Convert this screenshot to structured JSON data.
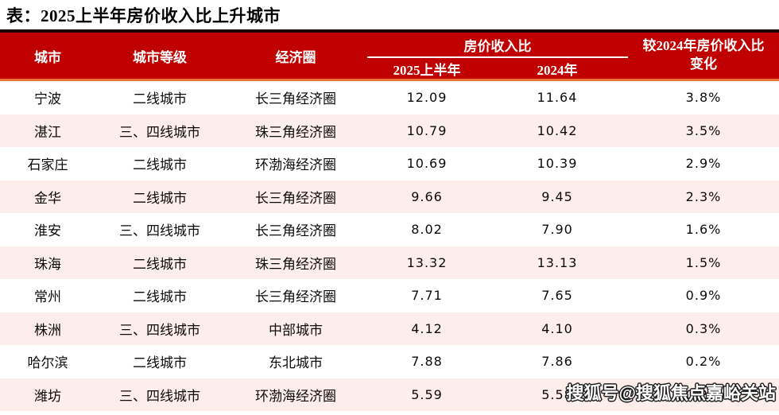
{
  "chart_data": {
    "type": "table",
    "title": "表：2025上半年房价收入比上升城市",
    "column_groups": {
      "ratio_group": "房价收入比"
    },
    "columns": {
      "city": "城市",
      "tier": "城市等级",
      "region": "经济圈",
      "h1_2025": "2025上半年",
      "y2024": "2024年",
      "change": "较2024年房价收入比变化"
    },
    "rows": [
      {
        "city": "宁波",
        "tier": "二线城市",
        "region": "长三角经济圈",
        "h1_2025": "12.09",
        "y2024": "11.64",
        "change": "3.8%"
      },
      {
        "city": "湛江",
        "tier": "三、四线城市",
        "region": "珠三角经济圈",
        "h1_2025": "10.79",
        "y2024": "10.42",
        "change": "3.5%"
      },
      {
        "city": "石家庄",
        "tier": "二线城市",
        "region": "环渤海经济圈",
        "h1_2025": "10.69",
        "y2024": "10.39",
        "change": "2.9%"
      },
      {
        "city": "金华",
        "tier": "二线城市",
        "region": "长三角经济圈",
        "h1_2025": "9.66",
        "y2024": "9.45",
        "change": "2.3%"
      },
      {
        "city": "淮安",
        "tier": "三、四线城市",
        "region": "长三角经济圈",
        "h1_2025": "8.02",
        "y2024": "7.90",
        "change": "1.6%"
      },
      {
        "city": "珠海",
        "tier": "二线城市",
        "region": "珠三角经济圈",
        "h1_2025": "13.32",
        "y2024": "13.13",
        "change": "1.5%"
      },
      {
        "city": "常州",
        "tier": "二线城市",
        "region": "长三角经济圈",
        "h1_2025": "7.71",
        "y2024": "7.65",
        "change": "0.9%"
      },
      {
        "city": "株洲",
        "tier": "三、四线城市",
        "region": "中部城市",
        "h1_2025": "4.12",
        "y2024": "4.10",
        "change": "0.3%"
      },
      {
        "city": "哈尔滨",
        "tier": "二线城市",
        "region": "东北城市",
        "h1_2025": "7.88",
        "y2024": "7.86",
        "change": "0.2%"
      },
      {
        "city": "潍坊",
        "tier": "三、四线城市",
        "region": "环渤海经济圈",
        "h1_2025": "5.59",
        "y2024": "5.58",
        "change": "0.2%"
      }
    ],
    "layout": {
      "zebra_striping": true,
      "header_rows": 2
    }
  },
  "watermark": "搜狐号@搜狐焦点嘉峪关站",
  "colors": {
    "header_red": "#C00000",
    "header_top_border": "#1B0303",
    "orange_rule": "#E97132",
    "row_pink": "#FDEDEB",
    "row_white": "#FFFFFF",
    "header_text": "#FFFFFF",
    "body_text": "#0A0A0A"
  }
}
